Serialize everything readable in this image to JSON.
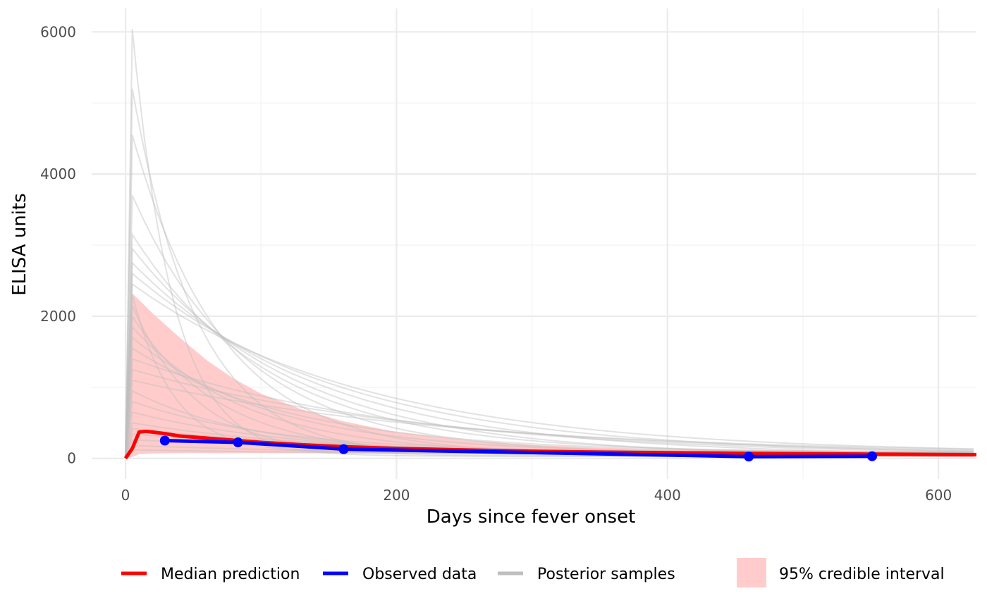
{
  "chart_data": {
    "type": "line",
    "title": "",
    "xlabel": "Days since fever onset",
    "ylabel": "ELISA units",
    "xlim": [
      -25,
      628
    ],
    "ylim": [
      -290,
      6330
    ],
    "x_ticks": [
      0,
      200,
      400,
      600
    ],
    "y_ticks": [
      0,
      2000,
      4000,
      6000
    ],
    "grid": true,
    "legend_position": "bottom",
    "series": [
      {
        "name": "Median prediction",
        "color": "#ff0000",
        "x": [
          0,
          5,
          10,
          15,
          20,
          30,
          40,
          60,
          80,
          100,
          130,
          160,
          200,
          250,
          300,
          350,
          400,
          460,
          500,
          550,
          600,
          628
        ],
        "y": [
          0,
          140,
          370,
          380,
          370,
          345,
          315,
          285,
          255,
          225,
          192,
          165,
          140,
          118,
          100,
          88,
          80,
          70,
          66,
          60,
          55,
          52
        ]
      },
      {
        "name": "Observed data",
        "color": "#0000ff",
        "x": [
          29,
          83,
          161,
          460,
          551
        ],
        "y": [
          250,
          225,
          130,
          25,
          30
        ]
      }
    ],
    "posterior_samples": {
      "name": "Posterior samples",
      "color": "#bebebe",
      "peaks": [
        6040,
        5200,
        4550,
        3700,
        3150,
        2950,
        2750,
        2600,
        2450,
        2300,
        2150,
        2000,
        1850,
        1700,
        1550,
        1400,
        1250,
        1100,
        950,
        800,
        650,
        500,
        420,
        340,
        260,
        180,
        120
      ],
      "peak_day": 5
    },
    "credible_interval": {
      "name": "95% credible interval",
      "color": "#ffcccb",
      "x": [
        0,
        5,
        10,
        20,
        40,
        60,
        80,
        100,
        130,
        160,
        200,
        250,
        300,
        350,
        400,
        460,
        500,
        550,
        600,
        628
      ],
      "lower": [
        0,
        20,
        60,
        70,
        75,
        75,
        75,
        74,
        72,
        70,
        66,
        62,
        58,
        54,
        50,
        46,
        44,
        40,
        37,
        35
      ],
      "upper": [
        0,
        2320,
        2230,
        2040,
        1700,
        1380,
        1120,
        910,
        690,
        525,
        370,
        255,
        190,
        150,
        125,
        110,
        100,
        92,
        85,
        82
      ]
    }
  }
}
